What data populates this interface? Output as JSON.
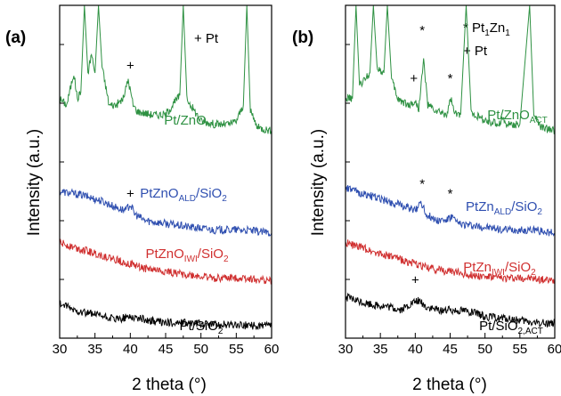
{
  "chart_data": [
    {
      "type": "line",
      "panel_label": "(a)",
      "xlabel": "2 theta (°)",
      "ylabel": "Intensity (a.u.)",
      "xlim": [
        30,
        60
      ],
      "xticks": [
        "30",
        "35",
        "40",
        "45",
        "50",
        "55",
        "60"
      ],
      "legend_note": "+ Pt",
      "series": [
        {
          "name": "Pt/ZnO",
          "label_main": "Pt/ZnO",
          "label_sub": "",
          "label_tail": "",
          "color": "#2e9142",
          "points": [
            [
              30,
              0.72
            ],
            [
              31,
              0.7
            ],
            [
              32,
              0.8
            ],
            [
              32.5,
              0.72
            ],
            [
              33,
              0.74
            ],
            [
              33.5,
              1.3
            ],
            [
              34,
              0.8
            ],
            [
              34.5,
              0.86
            ],
            [
              35,
              0.8
            ],
            [
              35.5,
              1.3
            ],
            [
              36,
              0.82
            ],
            [
              37,
              0.7
            ],
            [
              38,
              0.7
            ],
            [
              39,
              0.72
            ],
            [
              39.7,
              0.78
            ],
            [
              40.4,
              0.7
            ],
            [
              41,
              0.68
            ],
            [
              43,
              0.67
            ],
            [
              45,
              0.67
            ],
            [
              46,
              0.7
            ],
            [
              47,
              0.73
            ],
            [
              47.5,
              1.3
            ],
            [
              48,
              0.72
            ],
            [
              50,
              0.65
            ],
            [
              52,
              0.64
            ],
            [
              54,
              0.64
            ],
            [
              55,
              0.65
            ],
            [
              56,
              0.7
            ],
            [
              56.5,
              1.3
            ],
            [
              57,
              0.68
            ],
            [
              58,
              0.63
            ],
            [
              60,
              0.62
            ]
          ]
        },
        {
          "name": "PtZnO_ALD/SiO2",
          "label_main": "PtZnO",
          "label_sub": "ALD",
          "label_tail": "/SiO2",
          "color": "#2f4fb0",
          "points": [
            [
              30,
              0.43
            ],
            [
              33,
              0.42
            ],
            [
              36,
              0.4
            ],
            [
              38,
              0.38
            ],
            [
              39.3,
              0.37
            ],
            [
              40,
              0.39
            ],
            [
              40.6,
              0.36
            ],
            [
              42,
              0.34
            ],
            [
              45,
              0.33
            ],
            [
              48,
              0.32
            ],
            [
              52,
              0.31
            ],
            [
              56,
              0.31
            ],
            [
              60,
              0.3
            ]
          ]
        },
        {
          "name": "PtZnO_IWI/SiO2",
          "label_main": "PtZnO",
          "label_sub": "IWI",
          "label_tail": "/SiO2",
          "color": "#d03030",
          "points": [
            [
              30,
              0.27
            ],
            [
              33,
              0.25
            ],
            [
              36,
              0.23
            ],
            [
              39,
              0.21
            ],
            [
              42,
              0.19
            ],
            [
              45,
              0.18
            ],
            [
              48,
              0.17
            ],
            [
              52,
              0.16
            ],
            [
              56,
              0.16
            ],
            [
              60,
              0.15
            ]
          ]
        },
        {
          "name": "Pt/SiO2",
          "label_main": "Pt/SiO",
          "label_sub": "2",
          "label_tail": "",
          "color": "#000000",
          "points": [
            [
              30,
              0.08
            ],
            [
              32,
              0.06
            ],
            [
              34,
              0.05
            ],
            [
              36,
              0.04
            ],
            [
              38,
              0.03
            ],
            [
              40,
              0.04
            ],
            [
              42,
              0.03
            ],
            [
              45,
              0.02
            ],
            [
              48,
              0.02
            ],
            [
              52,
              0.015
            ],
            [
              56,
              0.012
            ],
            [
              60,
              0.01
            ]
          ]
        }
      ],
      "annotations": [
        {
          "text": "+",
          "x": 40,
          "y": 0.81
        },
        {
          "text": "+",
          "x": 40,
          "y": 0.41
        }
      ]
    },
    {
      "type": "line",
      "panel_label": "(b)",
      "xlabel": "2 theta (°)",
      "ylabel": "Intensity (a.u.)",
      "xlim": [
        30,
        60
      ],
      "xticks": [
        "30",
        "35",
        "40",
        "45",
        "50",
        "55",
        "60"
      ],
      "legend_note_1": "* Pt",
      "legend_note_1_sub1": "1",
      "legend_note_1_mid": "Zn",
      "legend_note_1_sub2": "1",
      "legend_note_2": "+ Pt",
      "series": [
        {
          "name": "Pt/ZnO_ACT",
          "label_main": "Pt/ZnO",
          "label_sub": "ACT",
          "label_tail": "",
          "color": "#2e9142",
          "points": [
            [
              30,
              0.72
            ],
            [
              31,
              0.72
            ],
            [
              31.5,
              1.3
            ],
            [
              32,
              0.76
            ],
            [
              33.5,
              0.8
            ],
            [
              34,
              1.3
            ],
            [
              34.5,
              0.82
            ],
            [
              35.5,
              0.8
            ],
            [
              36,
              1.3
            ],
            [
              36.6,
              0.78
            ],
            [
              37.5,
              0.72
            ],
            [
              39,
              0.7
            ],
            [
              40,
              0.71
            ],
            [
              40.5,
              0.69
            ],
            [
              41.2,
              0.84
            ],
            [
              41.8,
              0.7
            ],
            [
              43,
              0.68
            ],
            [
              44.5,
              0.67
            ],
            [
              45.1,
              0.72
            ],
            [
              45.7,
              0.67
            ],
            [
              46.5,
              0.67
            ],
            [
              47.3,
              1.3
            ],
            [
              48,
              0.68
            ],
            [
              50,
              0.65
            ],
            [
              52,
              0.64
            ],
            [
              52.5,
              0.66
            ],
            [
              53,
              0.64
            ],
            [
              55,
              0.64
            ],
            [
              56.4,
              1.3
            ],
            [
              57,
              0.67
            ],
            [
              58,
              0.63
            ],
            [
              60,
              0.62
            ]
          ]
        },
        {
          "name": "PtZn_ALD/SiO2",
          "label_main": "PtZn",
          "label_sub": "ALD",
          "label_tail": "/SiO2",
          "color": "#2f4fb0",
          "points": [
            [
              30,
              0.44
            ],
            [
              33,
              0.42
            ],
            [
              36,
              0.4
            ],
            [
              39,
              0.38
            ],
            [
              40,
              0.37
            ],
            [
              40.8,
              0.4
            ],
            [
              41.5,
              0.36
            ],
            [
              43,
              0.34
            ],
            [
              44.5,
              0.34
            ],
            [
              45.3,
              0.35
            ],
            [
              46,
              0.33
            ],
            [
              49,
              0.32
            ],
            [
              53,
              0.31
            ],
            [
              57,
              0.31
            ],
            [
              60,
              0.3
            ]
          ]
        },
        {
          "name": "PtZn_IWI/SiO2",
          "label_main": "PtZn",
          "label_sub": "IWI",
          "label_tail": "/SiO2",
          "color": "#d03030",
          "points": [
            [
              30,
              0.27
            ],
            [
              33,
              0.25
            ],
            [
              36,
              0.23
            ],
            [
              39,
              0.21
            ],
            [
              42,
              0.19
            ],
            [
              45,
              0.18
            ],
            [
              48,
              0.17
            ],
            [
              52,
              0.16
            ],
            [
              56,
              0.16
            ],
            [
              60,
              0.15
            ]
          ]
        },
        {
          "name": "Pt/SiO2,ACT",
          "label_main": "Pt/SiO",
          "label_sub": "2,ACT",
          "label_tail": "",
          "color": "#000000",
          "points": [
            [
              30,
              0.1
            ],
            [
              33,
              0.08
            ],
            [
              36,
              0.07
            ],
            [
              38,
              0.06
            ],
            [
              39.5,
              0.08
            ],
            [
              40.5,
              0.09
            ],
            [
              41.5,
              0.07
            ],
            [
              43,
              0.06
            ],
            [
              45,
              0.06
            ],
            [
              47,
              0.06
            ],
            [
              50,
              0.04
            ],
            [
              54,
              0.03
            ],
            [
              57,
              0.02
            ],
            [
              60,
              0.02
            ]
          ]
        }
      ],
      "annotations": [
        {
          "text": "*",
          "x": 41,
          "y": 0.92
        },
        {
          "text": "*",
          "x": 45,
          "y": 0.77
        },
        {
          "text": "+",
          "x": 39.8,
          "y": 0.77
        },
        {
          "text": "*",
          "x": 41,
          "y": 0.44
        },
        {
          "text": "*",
          "x": 45,
          "y": 0.41
        },
        {
          "text": "+",
          "x": 40,
          "y": 0.14
        }
      ]
    }
  ]
}
